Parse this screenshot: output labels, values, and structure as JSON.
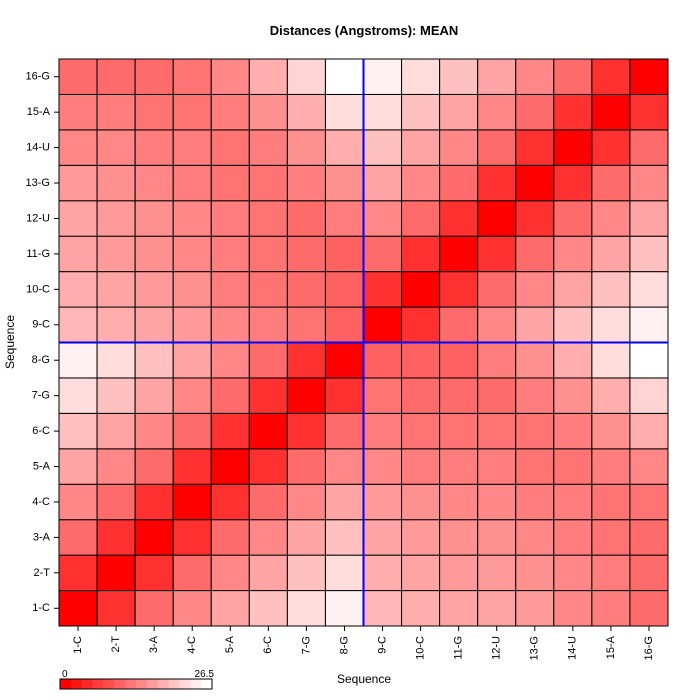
{
  "chart_data": {
    "type": "heatmap",
    "title": "Distances (Angstroms):  MEAN",
    "xlabel": "Sequence",
    "ylabel": "Sequence",
    "categories": [
      "1-C",
      "2-T",
      "3-A",
      "4-C",
      "5-A",
      "6-C",
      "7-G",
      "8-G",
      "9-C",
      "10-C",
      "11-G",
      "12-U",
      "13-G",
      "14-U",
      "15-A",
      "16-G"
    ],
    "scale": {
      "min": 0,
      "max": 26.5,
      "min_label": "0",
      "max_label": "26.5",
      "low_color": "#ff0000",
      "high_color": "#ffffff"
    },
    "divider_after_index": 8,
    "divider_color": "#0000ff",
    "values": [
      [
        0,
        5,
        11,
        14,
        17,
        20,
        23,
        25,
        19,
        18,
        17,
        17,
        16,
        14,
        13,
        11
      ],
      [
        5,
        0,
        5,
        11,
        14,
        17,
        20,
        23,
        18,
        17,
        16,
        16,
        15,
        14,
        13,
        11
      ],
      [
        11,
        5,
        0,
        5,
        11,
        14,
        17,
        20,
        17,
        16,
        15,
        15,
        14,
        13,
        12,
        11
      ],
      [
        14,
        11,
        5,
        0,
        5,
        11,
        14,
        17,
        16,
        15,
        14,
        14,
        13,
        13,
        12,
        12
      ],
      [
        17,
        14,
        11,
        5,
        0,
        5,
        11,
        14,
        14,
        13,
        13,
        13,
        12,
        12,
        13,
        14
      ],
      [
        20,
        17,
        14,
        11,
        5,
        0,
        5,
        11,
        13,
        12,
        12,
        12,
        12,
        13,
        15,
        18
      ],
      [
        23,
        20,
        17,
        14,
        11,
        5,
        0,
        5,
        12,
        11,
        11,
        11,
        13,
        15,
        18,
        22
      ],
      [
        25,
        23,
        20,
        17,
        14,
        11,
        5,
        0,
        10,
        10,
        10,
        13,
        15,
        18,
        23,
        26.5
      ],
      [
        19,
        18,
        17,
        16,
        14,
        13,
        12,
        10,
        0,
        5,
        11,
        14,
        17,
        20,
        23,
        25
      ],
      [
        18,
        17,
        16,
        15,
        13,
        12,
        11,
        10,
        5,
        0,
        5,
        11,
        14,
        17,
        20,
        23
      ],
      [
        17,
        16,
        15,
        14,
        13,
        12,
        11,
        10,
        11,
        5,
        0,
        5,
        11,
        14,
        17,
        20
      ],
      [
        17,
        16,
        15,
        14,
        13,
        12,
        11,
        13,
        14,
        11,
        5,
        0,
        5,
        11,
        14,
        17
      ],
      [
        16,
        15,
        14,
        13,
        12,
        12,
        13,
        15,
        17,
        14,
        11,
        5,
        0,
        5,
        11,
        14
      ],
      [
        14,
        14,
        13,
        13,
        12,
        13,
        15,
        18,
        20,
        17,
        14,
        11,
        5,
        0,
        5,
        11
      ],
      [
        13,
        13,
        12,
        12,
        13,
        15,
        18,
        23,
        23,
        20,
        17,
        14,
        11,
        5,
        0,
        5
      ],
      [
        11,
        11,
        11,
        12,
        14,
        18,
        22,
        26.5,
        25,
        23,
        20,
        17,
        14,
        11,
        5,
        0
      ]
    ]
  }
}
